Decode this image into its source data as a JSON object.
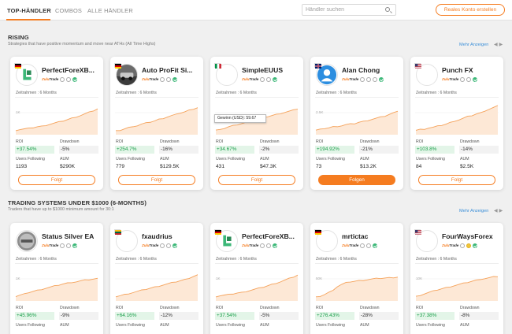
{
  "nav": {
    "tabs": [
      "TOP-HÄNDLER",
      "COMBOS",
      "ALLE HÄNDLER"
    ],
    "search_placeholder": "Händler suchen",
    "cta": "Reales Konto erstellen"
  },
  "colors": {
    "accent": "#f57c20",
    "positive": "#1a9e4a",
    "link": "#3a8ed8"
  },
  "labels": {
    "timeframe": "Zeitrahmen : 6 Months",
    "roi": "ROI",
    "drawdown": "Drawdown",
    "users_following": "Users Following",
    "aum": "AUM",
    "broker": "ZuluTrade",
    "follow": "Folgt",
    "follow_active": "Folgen",
    "tooltip": "Gewinn (USD): 59.67"
  },
  "sections": [
    {
      "title": "RISING",
      "subtitle": "Strategies that have positive momentum and move near ATHs (All Time Highs)",
      "more": "Mehr Anzeigen",
      "cards": [
        {
          "name": "PerfectForeXB...",
          "flag": "de",
          "avatar": "logo-green",
          "roi": "+37.54%",
          "drawdown": "-5%",
          "users": "1193",
          "aum": "$290K",
          "axis": "1K",
          "button": "follow",
          "trend": [
            0.05,
            0.08,
            0.1,
            0.12,
            0.15,
            0.18,
            0.2,
            0.24,
            0.28,
            0.32,
            0.36,
            0.4,
            0.45,
            0.5,
            0.55,
            0.6,
            0.66,
            0.72,
            0.78,
            0.85
          ]
        },
        {
          "name": "Auto ProFit Si...",
          "flag": "de",
          "avatar": "photo-car",
          "roi": "+254.7%",
          "drawdown": "-16%",
          "users": "779",
          "aum": "$129.5K",
          "axis": "",
          "button": "follow",
          "trend": [
            0.02,
            0.05,
            0.1,
            0.15,
            0.2,
            0.22,
            0.28,
            0.32,
            0.36,
            0.4,
            0.46,
            0.5,
            0.55,
            0.6,
            0.64,
            0.7,
            0.74,
            0.8,
            0.85,
            0.9
          ]
        },
        {
          "name": "SimpleEUUS",
          "flag": "it",
          "avatar": "blank",
          "roi": "+34.67%",
          "drawdown": "-2%",
          "users": "431",
          "aum": "$47.3K",
          "axis": "",
          "button": "follow",
          "tooltip": true,
          "trend": [
            0.05,
            0.1,
            0.12,
            0.18,
            0.22,
            0.26,
            0.3,
            0.34,
            0.38,
            0.42,
            0.48,
            0.52,
            0.56,
            0.6,
            0.64,
            0.68,
            0.72,
            0.76,
            0.8,
            0.85
          ]
        },
        {
          "name": "Alan Chong",
          "flag": "uk",
          "avatar": "person-blue",
          "roi": "+194.92%",
          "drawdown": "-21%",
          "users": "73",
          "aum": "$13.2K",
          "axis": "2.5K",
          "button": "follow_active",
          "trend": [
            0.05,
            0.08,
            0.12,
            0.14,
            0.18,
            0.2,
            0.22,
            0.26,
            0.28,
            0.3,
            0.35,
            0.38,
            0.42,
            0.46,
            0.5,
            0.54,
            0.58,
            0.64,
            0.7,
            0.78
          ]
        },
        {
          "name": "Punch FX",
          "flag": "us",
          "avatar": "blank",
          "roi": "+103.8%",
          "drawdown": "-14%",
          "users": "84",
          "aum": "$2.5K",
          "axis": "",
          "button": "follow",
          "trend": [
            0.05,
            0.08,
            0.1,
            0.14,
            0.16,
            0.2,
            0.24,
            0.28,
            0.34,
            0.4,
            0.44,
            0.5,
            0.56,
            0.6,
            0.66,
            0.7,
            0.78,
            0.84,
            0.9,
            0.96
          ]
        }
      ]
    },
    {
      "title": "TRADING SYSTEMS UNDER $1000 (6-MONTHS)",
      "subtitle": "Traders that have up to $1000 minimum amount for 30:1",
      "more": "Mehr Anzeigen",
      "cards": [
        {
          "name": "Status Silver EA",
          "flag": "",
          "avatar": "silver",
          "roi": "+45.96%",
          "drawdown": "-9%",
          "users": "",
          "aum": "",
          "axis": "1K",
          "button": "",
          "trend": [
            0.05,
            0.1,
            0.14,
            0.2,
            0.24,
            0.28,
            0.32,
            0.36,
            0.4,
            0.44,
            0.48,
            0.52,
            0.55,
            0.58,
            0.6,
            0.63,
            0.66,
            0.68,
            0.7,
            0.72
          ]
        },
        {
          "name": "fxaudrius",
          "flag": "lt",
          "avatar": "blank",
          "roi": "+64.16%",
          "drawdown": "-12%",
          "users": "",
          "aum": "",
          "axis": "",
          "button": "",
          "trend": [
            0.05,
            0.08,
            0.12,
            0.16,
            0.2,
            0.24,
            0.28,
            0.32,
            0.36,
            0.4,
            0.44,
            0.48,
            0.52,
            0.56,
            0.6,
            0.64,
            0.68,
            0.74,
            0.8,
            0.86
          ]
        },
        {
          "name": "PerfectForeXB...",
          "flag": "de",
          "avatar": "logo-green",
          "roi": "+37.54%",
          "drawdown": "-5%",
          "users": "",
          "aum": "",
          "axis": "1K",
          "button": "",
          "trend": [
            0.05,
            0.08,
            0.1,
            0.12,
            0.15,
            0.18,
            0.2,
            0.24,
            0.28,
            0.32,
            0.36,
            0.4,
            0.45,
            0.5,
            0.55,
            0.6,
            0.66,
            0.72,
            0.78,
            0.85
          ]
        },
        {
          "name": "mrtictac",
          "flag": "de",
          "avatar": "blank",
          "roi": "+276.43%",
          "drawdown": "-28%",
          "users": "",
          "aum": "",
          "axis": "50K",
          "button": "",
          "trend": [
            0.02,
            0.06,
            0.12,
            0.2,
            0.3,
            0.42,
            0.5,
            0.56,
            0.6,
            0.62,
            0.64,
            0.66,
            0.68,
            0.7,
            0.72,
            0.73,
            0.74,
            0.75,
            0.76,
            0.78
          ]
        },
        {
          "name": "FourWaysForex",
          "flag": "us",
          "avatar": "blank",
          "roi": "+37.38%",
          "drawdown": "-8%",
          "users": "",
          "aum": "",
          "axis": "10K",
          "button": "",
          "trend": [
            0.05,
            0.1,
            0.15,
            0.2,
            0.25,
            0.3,
            0.34,
            0.38,
            0.42,
            0.46,
            0.5,
            0.54,
            0.58,
            0.62,
            0.66,
            0.7,
            0.72,
            0.75,
            0.78,
            0.8
          ]
        }
      ]
    }
  ]
}
